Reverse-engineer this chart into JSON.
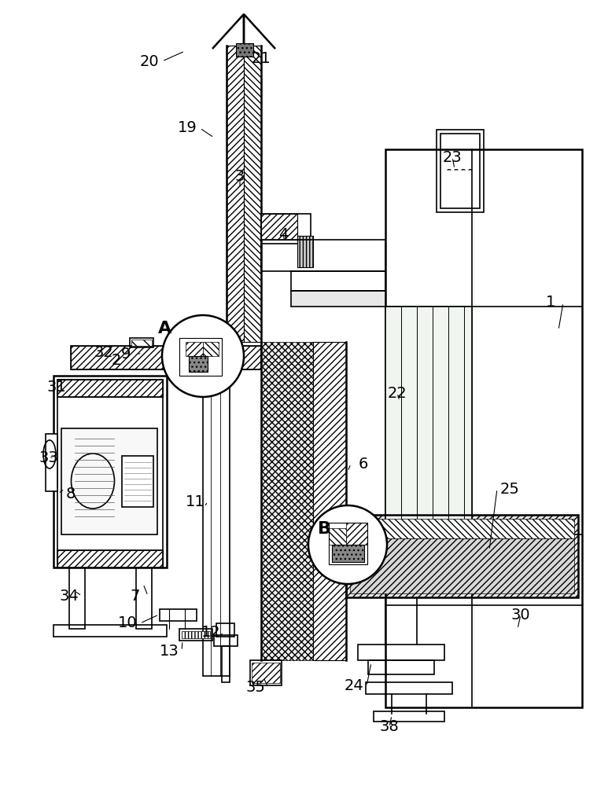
{
  "bg_color": "#ffffff",
  "line_color": "#000000",
  "figsize": [
    7.59,
    10.0
  ],
  "dpi": 100
}
